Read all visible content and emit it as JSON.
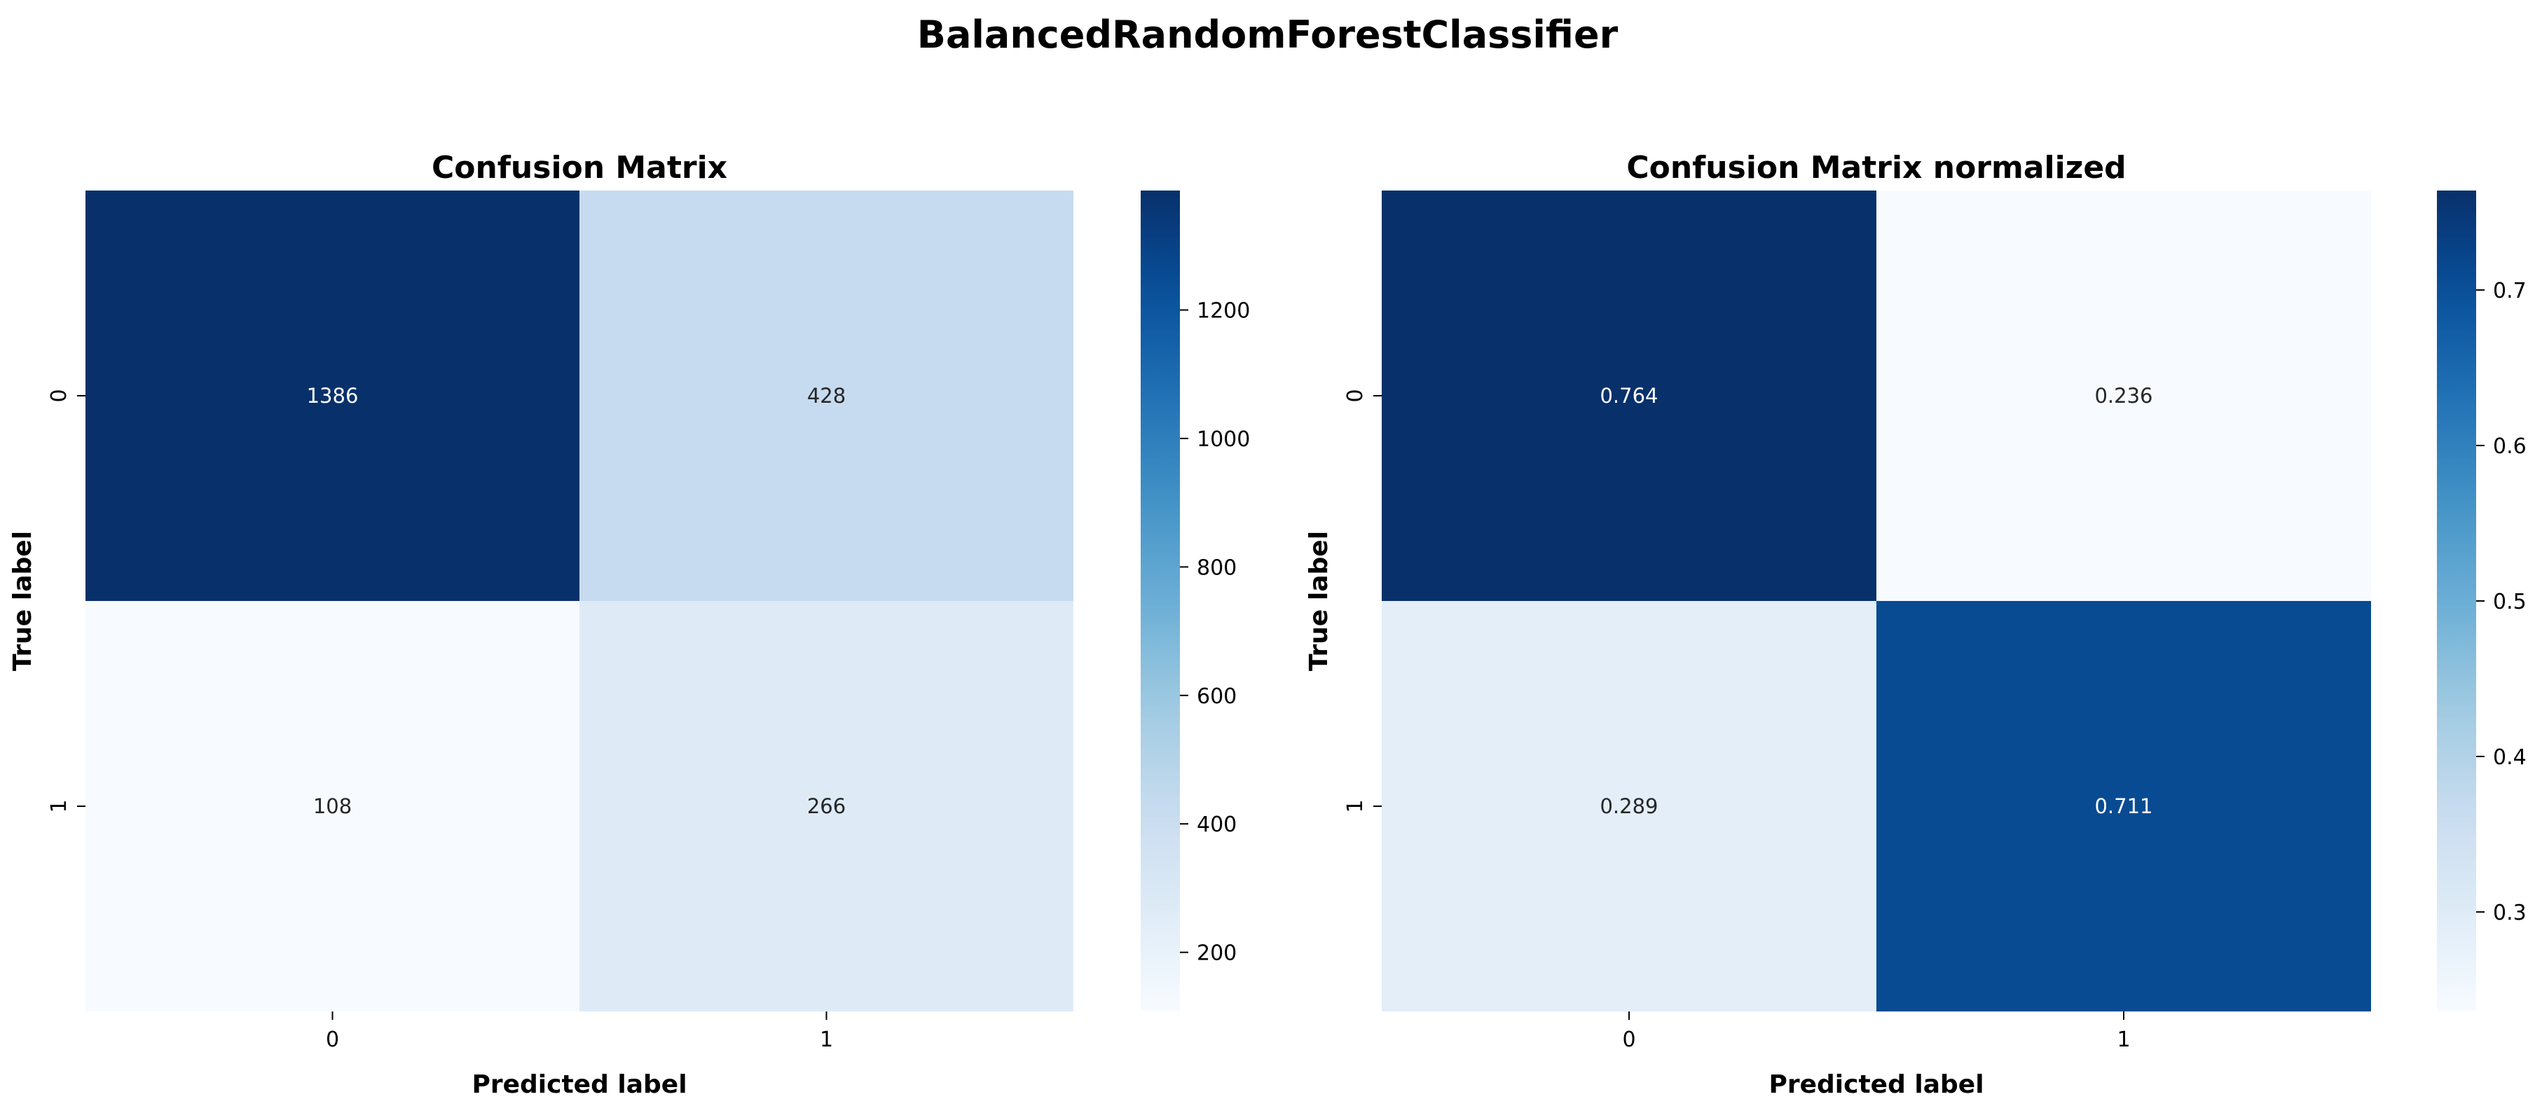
{
  "figure": {
    "title": "BalancedRandomForestClassifier"
  },
  "chart_data": [
    {
      "type": "heatmap",
      "title": "Confusion Matrix",
      "xlabel": "Predicted label",
      "ylabel": "True label",
      "x_tick_labels": [
        "0",
        "1"
      ],
      "y_tick_labels": [
        "0",
        "1"
      ],
      "values": [
        [
          1386,
          428
        ],
        [
          108,
          266
        ]
      ],
      "value_labels": [
        [
          "1386",
          "428"
        ],
        [
          "108",
          "266"
        ]
      ],
      "colormap": "Blues",
      "colorbar": {
        "range": [
          108,
          1386
        ],
        "ticks": [
          200,
          400,
          600,
          800,
          1000,
          1200
        ],
        "tick_labels": [
          "200",
          "400",
          "600",
          "800",
          "1000",
          "1200"
        ]
      }
    },
    {
      "type": "heatmap",
      "title": "Confusion Matrix normalized",
      "xlabel": "Predicted label",
      "ylabel": "True label",
      "x_tick_labels": [
        "0",
        "1"
      ],
      "y_tick_labels": [
        "0",
        "1"
      ],
      "values": [
        [
          0.764,
          0.236
        ],
        [
          0.289,
          0.711
        ]
      ],
      "value_labels": [
        [
          "0.764",
          "0.236"
        ],
        [
          "0.289",
          "0.711"
        ]
      ],
      "colormap": "Blues",
      "colorbar": {
        "range": [
          0.236,
          0.764
        ],
        "ticks": [
          0.3,
          0.4,
          0.5,
          0.6,
          0.7
        ],
        "tick_labels": [
          "0.3",
          "0.4",
          "0.5",
          "0.6",
          "0.7"
        ]
      }
    }
  ]
}
